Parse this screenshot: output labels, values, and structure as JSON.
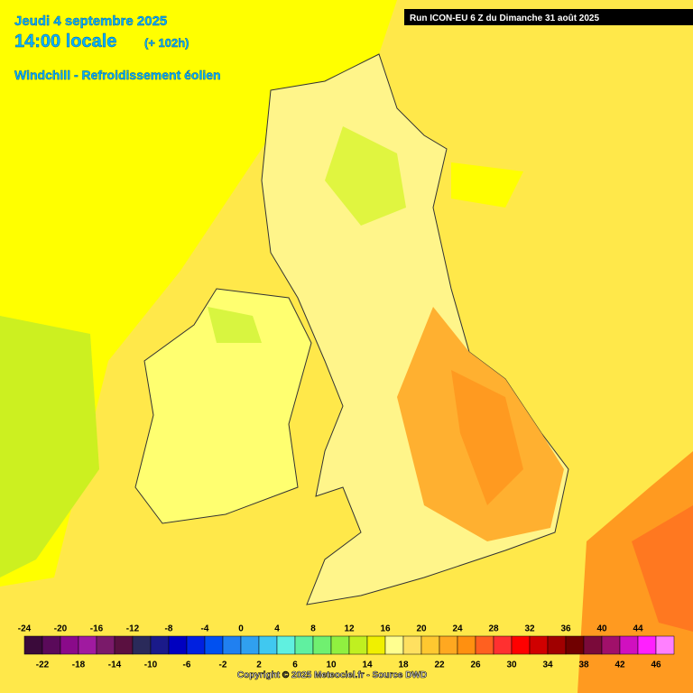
{
  "header": {
    "date": "Jeudi 4 septembre 2025",
    "time": "14:00 locale",
    "offset": "(+ 102h)",
    "variable": "Windchill - Refroidissement éolien"
  },
  "run": "Run ICON-EU 6 Z du Dimanche 31 août 2025",
  "legend": {
    "values": [
      -24,
      -22,
      -20,
      -18,
      -16,
      -14,
      -12,
      -10,
      -8,
      -6,
      -4,
      -2,
      0,
      2,
      4,
      6,
      8,
      10,
      12,
      14,
      16,
      18,
      20,
      22,
      24,
      26,
      28,
      30,
      32,
      34,
      36,
      38,
      40,
      42,
      44,
      46
    ],
    "colors": [
      "#3a0a3a",
      "#5a0a5a",
      "#8a0a8a",
      "#a01aa0",
      "#7a1a6a",
      "#5a1040",
      "#2a2a5a",
      "#1a1a8a",
      "#0000c0",
      "#0020e0",
      "#0050f0",
      "#2080f0",
      "#30a0f0",
      "#40c8f0",
      "#60f0e0",
      "#60f0a0",
      "#70f070",
      "#90f040",
      "#c0f020",
      "#f0f000",
      "#ffff90",
      "#ffe060",
      "#ffc830",
      "#ffa820",
      "#ff9010",
      "#ff6020",
      "#ff3030",
      "#ff0000",
      "#d00000",
      "#a00000",
      "#700000",
      "#7a0a3a",
      "#a0106a",
      "#d010c0",
      "#ff20ff",
      "#ff80ff"
    ]
  },
  "copyright": "Copyright © 2025 Meteociel.fr - Source DWD"
}
